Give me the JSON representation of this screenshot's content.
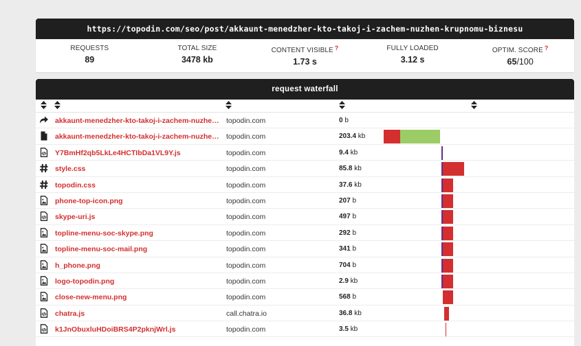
{
  "url": "https://topodin.com/seo/post/akkaunt-menedzher-kto-takoj-i-zachem-nuzhen-krupnomu-biznesu",
  "stats": [
    {
      "label": "REQUESTS",
      "value": "89",
      "unit": "",
      "help": false
    },
    {
      "label": "TOTAL SIZE",
      "value": "3478 kb",
      "unit": "",
      "help": false
    },
    {
      "label": "CONTENT VISIBLE",
      "value": "1.73 s",
      "unit": "",
      "help": true
    },
    {
      "label": "FULLY LOADED",
      "value": "3.12 s",
      "unit": "",
      "help": false
    },
    {
      "label": "OPTIM. SCORE",
      "value": "65",
      "unit": "/100",
      "help": true
    }
  ],
  "help_mark": "?",
  "waterfall_title": "request waterfall",
  "colors": {
    "red": "#d32f2f",
    "green": "#9ccc65",
    "purple": "#5e2d91",
    "dark": "#1f1f1f"
  },
  "rows": [
    {
      "icon": "redirect-icon",
      "name": "akkaunt-menedzher-kto-takoj-i-zachem-nuzhen-...",
      "host": "topodin.com",
      "size_num": "0",
      "size_unit": "b",
      "bars": []
    },
    {
      "icon": "document-icon",
      "name": "akkaunt-menedzher-kto-takoj-i-zachem-nuzhen-...",
      "host": "topodin.com",
      "size_num": "203.4",
      "size_unit": "kb",
      "bars": [
        {
          "start": 0.0,
          "end": 0.36,
          "color": "red"
        },
        {
          "start": 0.36,
          "end": 1.22,
          "color": "green"
        }
      ]
    },
    {
      "icon": "script-icon",
      "name": "Y7BmHf2qb5LkLe4HCTIbDa1VL9Y.js",
      "host": "topodin.com",
      "size_num": "9.4",
      "size_unit": "kb",
      "bars": [
        {
          "start": 1.25,
          "end": 1.27,
          "color": "purple"
        }
      ]
    },
    {
      "icon": "hash-icon",
      "name": "style.css",
      "host": "topodin.com",
      "size_num": "85.8",
      "size_unit": "kb",
      "bars": [
        {
          "start": 1.25,
          "end": 1.27,
          "color": "purple"
        },
        {
          "start": 1.27,
          "end": 1.73,
          "color": "red"
        }
      ]
    },
    {
      "icon": "hash-icon",
      "name": "topodin.css",
      "host": "topodin.com",
      "size_num": "37.6",
      "size_unit": "kb",
      "bars": [
        {
          "start": 1.25,
          "end": 1.27,
          "color": "purple"
        },
        {
          "start": 1.27,
          "end": 1.5,
          "color": "red"
        }
      ]
    },
    {
      "icon": "image-icon",
      "name": "phone-top-icon.png",
      "host": "topodin.com",
      "size_num": "207",
      "size_unit": "b",
      "bars": [
        {
          "start": 1.25,
          "end": 1.27,
          "color": "purple"
        },
        {
          "start": 1.27,
          "end": 1.5,
          "color": "red"
        }
      ]
    },
    {
      "icon": "script-icon",
      "name": "skype-uri.js",
      "host": "topodin.com",
      "size_num": "497",
      "size_unit": "b",
      "bars": [
        {
          "start": 1.25,
          "end": 1.27,
          "color": "purple"
        },
        {
          "start": 1.27,
          "end": 1.5,
          "color": "red"
        }
      ]
    },
    {
      "icon": "image-icon",
      "name": "topline-menu-soc-skype.png",
      "host": "topodin.com",
      "size_num": "292",
      "size_unit": "b",
      "bars": [
        {
          "start": 1.25,
          "end": 1.27,
          "color": "purple"
        },
        {
          "start": 1.27,
          "end": 1.5,
          "color": "red"
        }
      ]
    },
    {
      "icon": "image-icon",
      "name": "topline-menu-soc-mail.png",
      "host": "topodin.com",
      "size_num": "341",
      "size_unit": "b",
      "bars": [
        {
          "start": 1.25,
          "end": 1.27,
          "color": "purple"
        },
        {
          "start": 1.27,
          "end": 1.5,
          "color": "red"
        }
      ]
    },
    {
      "icon": "image-icon",
      "name": "h_phone.png",
      "host": "topodin.com",
      "size_num": "704",
      "size_unit": "b",
      "bars": [
        {
          "start": 1.25,
          "end": 1.27,
          "color": "purple"
        },
        {
          "start": 1.27,
          "end": 1.5,
          "color": "red"
        }
      ]
    },
    {
      "icon": "image-icon",
      "name": "logo-topodin.png",
      "host": "topodin.com",
      "size_num": "2.9",
      "size_unit": "kb",
      "bars": [
        {
          "start": 1.25,
          "end": 1.27,
          "color": "purple"
        },
        {
          "start": 1.27,
          "end": 1.5,
          "color": "red"
        }
      ]
    },
    {
      "icon": "image-icon",
      "name": "close-new-menu.png",
      "host": "topodin.com",
      "size_num": "568",
      "size_unit": "b",
      "bars": [
        {
          "start": 1.27,
          "end": 1.5,
          "color": "red"
        }
      ]
    },
    {
      "icon": "script-icon",
      "name": "chatra.js",
      "host": "call.chatra.io",
      "size_num": "36.8",
      "size_unit": "kb",
      "bars": [
        {
          "start": 1.3,
          "end": 1.4,
          "color": "red"
        }
      ]
    },
    {
      "icon": "script-icon",
      "name": "k1JnObuxluHDoiBRS4P2pknjWrl.js",
      "host": "topodin.com",
      "size_num": "3.5",
      "size_unit": "kb",
      "bars": [
        {
          "start": 1.33,
          "end": 1.35,
          "color": "red"
        }
      ]
    }
  ]
}
